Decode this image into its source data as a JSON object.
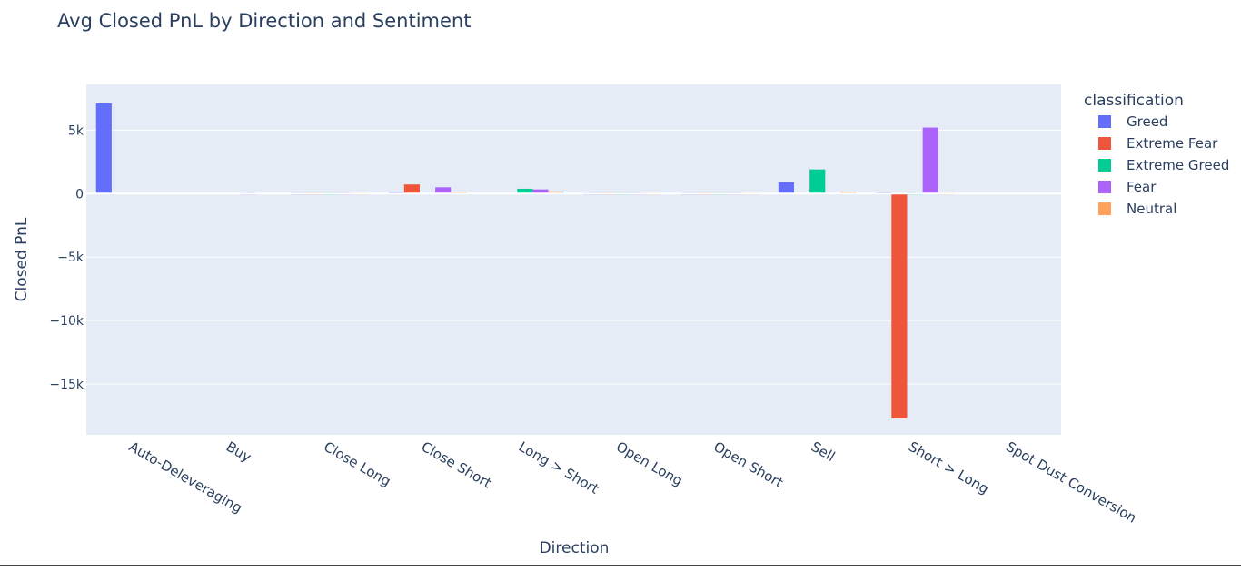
{
  "chart_data": {
    "type": "bar",
    "title": "Avg Closed PnL by Direction and Sentiment",
    "xlabel": "Direction",
    "ylabel": "Closed PnL",
    "legend_title": "classification",
    "legend_position": "right",
    "grid": true,
    "ylim": [
      -19000,
      8600
    ],
    "yticks": [
      5000,
      0,
      -5000,
      -10000,
      -15000
    ],
    "ytick_labels": [
      "5k",
      "0",
      "−5k",
      "−10k",
      "−15k"
    ],
    "categories": [
      "Auto-Deleveraging",
      "Buy",
      "Close Long",
      "Close Short",
      "Long > Short",
      "Open Long",
      "Open Short",
      "Sell",
      "Short > Long",
      "Spot Dust Conversion"
    ],
    "series": [
      {
        "name": "Greed",
        "color": "#636efa",
        "values": [
          7100,
          null,
          40,
          110,
          null,
          0,
          0,
          900,
          90,
          null
        ]
      },
      {
        "name": "Extreme Fear",
        "color": "#ef553b",
        "values": [
          null,
          null,
          60,
          720,
          null,
          0,
          0,
          null,
          -17700,
          null
        ]
      },
      {
        "name": "Extreme Greed",
        "color": "#00cc96",
        "values": [
          null,
          null,
          30,
          null,
          380,
          0,
          0,
          1900,
          0,
          null
        ]
      },
      {
        "name": "Fear",
        "color": "#ab63fa",
        "values": [
          null,
          0,
          40,
          500,
          330,
          0,
          0,
          null,
          5200,
          null
        ]
      },
      {
        "name": "Neutral",
        "color": "#ffa15a",
        "values": [
          null,
          null,
          60,
          130,
          180,
          0,
          0,
          140,
          30,
          null
        ]
      }
    ]
  }
}
